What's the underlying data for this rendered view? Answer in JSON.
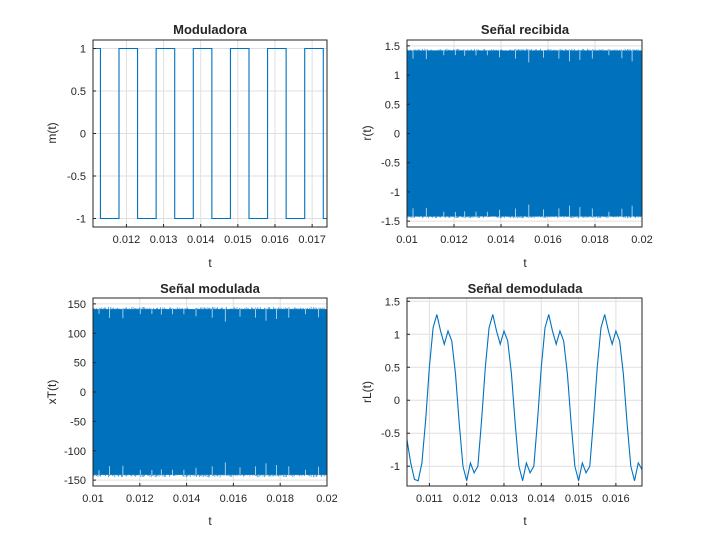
{
  "figure": {
    "background": "#ffffff",
    "line_color": "#0072bd",
    "axis_color": "#262626",
    "grid_color": "#dfdfdf"
  },
  "chart_data": [
    {
      "type": "line",
      "title": "Moduladora",
      "xlabel": "t",
      "ylabel": "m(t)",
      "xlim": [
        0.0111,
        0.0174
      ],
      "ylim": [
        -1.1,
        1.1
      ],
      "xticks": [
        0.012,
        0.013,
        0.014,
        0.015,
        0.016,
        0.017
      ],
      "xtick_labels": [
        "0.012",
        "0.013",
        "0.014",
        "0.015",
        "0.016",
        "0.017"
      ],
      "yticks": [
        -1,
        -0.5,
        0,
        0.5,
        1
      ],
      "ytick_labels": [
        "-1",
        "-0.5",
        "0",
        "0.5",
        "1"
      ],
      "grid": true,
      "series": [
        {
          "x": [
            0.0111,
            0.0113,
            0.0113,
            0.0118,
            0.0118,
            0.0123,
            0.0123,
            0.0128,
            0.0128,
            0.0133,
            0.0133,
            0.0138,
            0.0138,
            0.0143,
            0.0143,
            0.0148,
            0.0148,
            0.0153,
            0.0153,
            0.0158,
            0.0158,
            0.0163,
            0.0163,
            0.0168,
            0.0168,
            0.0173,
            0.0173,
            0.0174
          ],
          "y": [
            1,
            1,
            -1,
            -1,
            1,
            1,
            -1,
            -1,
            1,
            1,
            -1,
            -1,
            1,
            1,
            -1,
            -1,
            1,
            1,
            -1,
            -1,
            1,
            1,
            -1,
            -1,
            1,
            1,
            -1,
            -1
          ]
        }
      ]
    },
    {
      "type": "line",
      "title": "Señal recibida",
      "xlabel": "t",
      "ylabel": "r(t)",
      "xlim": [
        0.01,
        0.02
      ],
      "ylim": [
        -1.6,
        1.6
      ],
      "xticks": [
        0.01,
        0.012,
        0.014,
        0.016,
        0.018,
        0.02
      ],
      "xtick_labels": [
        "0.01",
        "0.012",
        "0.014",
        "0.016",
        "0.018",
        "0.02"
      ],
      "yticks": [
        -1.5,
        -1,
        -0.5,
        0,
        0.5,
        1,
        1.5
      ],
      "ytick_labels": [
        "-1.5",
        "-1",
        "-0.5",
        "0",
        "0.5",
        "1",
        "1.5"
      ],
      "grid": true,
      "envelope": {
        "upper": 1.42,
        "lower": -1.42,
        "spike_peak": 1.45,
        "spike_dip": 1.2
      }
    },
    {
      "type": "line",
      "title": "Señal modulada",
      "xlabel": "t",
      "ylabel": "xT(t)",
      "xlim": [
        0.01,
        0.02
      ],
      "ylim": [
        -160,
        160
      ],
      "xticks": [
        0.01,
        0.012,
        0.014,
        0.016,
        0.018,
        0.02
      ],
      "xtick_labels": [
        "0.01",
        "0.012",
        "0.014",
        "0.016",
        "0.018",
        "0.02"
      ],
      "yticks": [
        -150,
        -100,
        -50,
        0,
        50,
        100,
        150
      ],
      "ytick_labels": [
        "-150",
        "-100",
        "-50",
        "0",
        "50",
        "100",
        "150"
      ],
      "grid": true,
      "envelope": {
        "upper": 141,
        "lower": -141,
        "spike_peak": 145,
        "spike_dip": 118
      }
    },
    {
      "type": "line",
      "title": "Señal demodulada",
      "xlabel": "t",
      "ylabel": "rL(t)",
      "xlim": [
        0.0104,
        0.0167
      ],
      "ylim": [
        -1.3,
        1.55
      ],
      "xticks": [
        0.011,
        0.012,
        0.013,
        0.014,
        0.015,
        0.016
      ],
      "xtick_labels": [
        "0.011",
        "0.012",
        "0.013",
        "0.014",
        "0.015",
        "0.016"
      ],
      "yticks": [
        -1,
        -0.5,
        0,
        0.5,
        1,
        1.5
      ],
      "ytick_labels": [
        "-1",
        "-0.5",
        "0",
        "0.5",
        "1",
        "1.5"
      ],
      "grid": true,
      "series": [
        {
          "x": [
            0.0104,
            0.0105,
            0.0106,
            0.0107,
            0.0108,
            0.0109,
            0.011,
            0.0111,
            0.0112,
            0.0113,
            0.0114,
            0.0115,
            0.0116,
            0.0117,
            0.0118,
            0.0119,
            0.012,
            0.0121,
            0.0122,
            0.0123,
            0.0124,
            0.0125,
            0.0126,
            0.0127,
            0.0128,
            0.0129,
            0.013,
            0.0131,
            0.0132,
            0.0133,
            0.0134,
            0.0135,
            0.0136,
            0.0137,
            0.0138,
            0.0139,
            0.014,
            0.0141,
            0.0142,
            0.0143,
            0.0144,
            0.0145,
            0.0146,
            0.0147,
            0.0148,
            0.0149,
            0.015,
            0.0151,
            0.0152,
            0.0153,
            0.0154,
            0.0155,
            0.0156,
            0.0157,
            0.0158,
            0.0159,
            0.016,
            0.0161,
            0.0162,
            0.0163,
            0.0164,
            0.0165,
            0.0166,
            0.0167
          ],
          "y": [
            -0.6,
            -0.95,
            -1.2,
            -1.22,
            -0.95,
            -0.3,
            0.5,
            1.1,
            1.3,
            1.05,
            0.85,
            1.05,
            0.9,
            0.4,
            -0.35,
            -1.0,
            -1.22,
            -0.95,
            -1.1,
            -1.0,
            -0.3,
            0.5,
            1.1,
            1.3,
            1.05,
            0.85,
            1.05,
            0.9,
            0.4,
            -0.35,
            -1.0,
            -1.22,
            -0.95,
            -1.1,
            -1.0,
            -0.3,
            0.5,
            1.1,
            1.3,
            1.05,
            0.85,
            1.05,
            0.9,
            0.4,
            -0.35,
            -1.0,
            -1.22,
            -0.95,
            -1.1,
            -1.0,
            -0.3,
            0.5,
            1.1,
            1.3,
            1.05,
            0.85,
            1.05,
            0.9,
            0.4,
            -0.35,
            -1.0,
            -1.22,
            -0.95,
            -1.05
          ]
        }
      ]
    }
  ]
}
